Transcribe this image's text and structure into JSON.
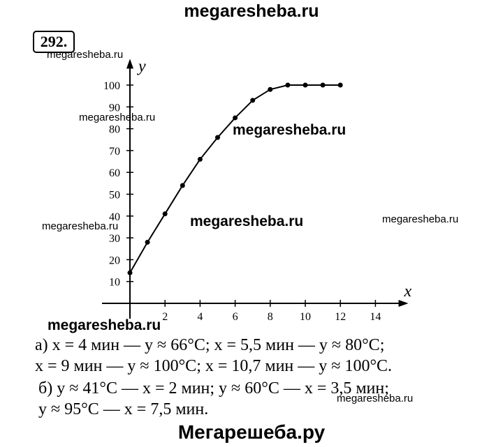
{
  "header_watermark": "megaresheba.ru",
  "footer_watermark": "Мегарешеба.ру",
  "small_watermarks": [
    "megaresheba.ru",
    "megaresheba.ru",
    "megaresheba.ru",
    "megaresheba.ru",
    "megaresheba.ru"
  ],
  "bold_watermarks": [
    "megaresheba.ru",
    "megaresheba.ru",
    "megaresheba.ru"
  ],
  "problem_number": "292.",
  "answers": {
    "a_line1": "а)  x = 4 мин — y ≈ 66°C;  x = 5,5 мин — y ≈ 80°C;",
    "a_line2": "x = 9 мин — y ≈ 100°C;  x = 10,7 мин — y ≈ 100°C.",
    "b_line1": "б)  y ≈ 41°C — x = 2 мин;  y ≈ 60°C — x = 3,5 мин;",
    "b_line2": "y ≈ 95°C — x = 7,5 мин."
  },
  "chart_data": {
    "type": "line",
    "xlabel": "x",
    "ylabel": "y",
    "xlim": [
      0,
      15
    ],
    "ylim": [
      0,
      105
    ],
    "x_ticks": [
      2,
      4,
      6,
      8,
      10,
      12,
      14
    ],
    "y_ticks": [
      10,
      20,
      30,
      40,
      50,
      60,
      70,
      80,
      90,
      100
    ],
    "x_tick_labels": [
      "2",
      "4",
      "6",
      "8",
      "10",
      "12",
      "14"
    ],
    "y_tick_labels": [
      "10",
      "20",
      "30",
      "40",
      "50",
      "60",
      "70",
      "80",
      "90",
      "100"
    ],
    "grid": false,
    "series": [
      {
        "x": [
          0,
          1,
          2,
          3,
          4,
          5,
          6,
          7,
          8,
          9,
          10,
          11,
          12
        ],
        "y": [
          14,
          28,
          41,
          54,
          66,
          76,
          85,
          93,
          98,
          100,
          100,
          100,
          100
        ]
      }
    ]
  }
}
